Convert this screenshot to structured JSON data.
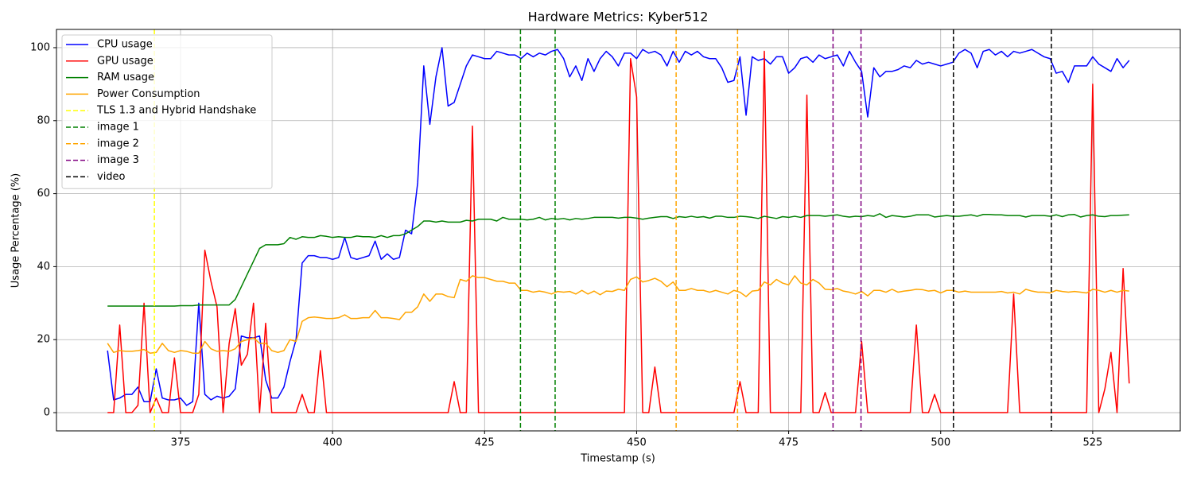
{
  "chart_data": {
    "type": "line",
    "title": "Hardware Metrics: Kyber512",
    "xlabel": "Timestamp (s)",
    "ylabel": "Usage Percentage (%)",
    "x": [
      363,
      364,
      365,
      366,
      367,
      368,
      369,
      370,
      371,
      372,
      373,
      374,
      375,
      376,
      377,
      378,
      379,
      380,
      381,
      382,
      383,
      384,
      385,
      386,
      387,
      388,
      389,
      390,
      391,
      392,
      393,
      394,
      395,
      396,
      397,
      398,
      399,
      400,
      401,
      402,
      403,
      404,
      405,
      406,
      407,
      408,
      409,
      410,
      411,
      412,
      413,
      414,
      415,
      416,
      417,
      418,
      419,
      420,
      421,
      422,
      423,
      424,
      425,
      426,
      427,
      428,
      429,
      430,
      431,
      432,
      433,
      434,
      435,
      436,
      437,
      438,
      439,
      440,
      441,
      442,
      443,
      444,
      445,
      446,
      447,
      448,
      449,
      450,
      451,
      452,
      453,
      454,
      455,
      456,
      457,
      458,
      459,
      460,
      461,
      462,
      463,
      464,
      465,
      466,
      467,
      468,
      469,
      470,
      471,
      472,
      473,
      474,
      475,
      476,
      477,
      478,
      479,
      480,
      481,
      482,
      483,
      484,
      485,
      486,
      487,
      488,
      489,
      490,
      491,
      492,
      493,
      494,
      495,
      496,
      497,
      498,
      499,
      500,
      501,
      502,
      503,
      504,
      505,
      506,
      507,
      508,
      509,
      510,
      511,
      512,
      513,
      514,
      515,
      516,
      517,
      518,
      519,
      520,
      521,
      522,
      523,
      524,
      525,
      526,
      527,
      528,
      529,
      530,
      531
    ],
    "series": [
      {
        "name": "CPU usage",
        "color": "#0000ff",
        "values": [
          17,
          3.5,
          4,
          5,
          5,
          7,
          3,
          3,
          12,
          4,
          3.5,
          3.5,
          4,
          2,
          3,
          30,
          5,
          3.5,
          4.5,
          4,
          4.5,
          6.5,
          21,
          20.5,
          20.5,
          21,
          9,
          4,
          4,
          7,
          14,
          20,
          41,
          43,
          43,
          42.5,
          42.5,
          42,
          42.5,
          48,
          42.5,
          42,
          42.5,
          43,
          47,
          42,
          43.5,
          42,
          42.5,
          50,
          49,
          63,
          95,
          79,
          92,
          100,
          84,
          85,
          90,
          95,
          98,
          97.5,
          97,
          97,
          99,
          98.5,
          98,
          98,
          97,
          98.5,
          97.5,
          98.5,
          98,
          99,
          99.5,
          97,
          92,
          95,
          91,
          97,
          93.5,
          97,
          99,
          97.5,
          95,
          98.5,
          98.5,
          97,
          99.5,
          98.5,
          99,
          98,
          95,
          99,
          96,
          99,
          98,
          99,
          97.5,
          97,
          97,
          94.5,
          90.5,
          91,
          97.5,
          81.5,
          97.5,
          96.5,
          97,
          95.5,
          97.5,
          97.5,
          93,
          94.5,
          97,
          97.5,
          96,
          98,
          97,
          97.5,
          98,
          95,
          99,
          96,
          93.5,
          81,
          94.5,
          92,
          93.5,
          93.5,
          94,
          95,
          94.5,
          96.5,
          95.5,
          96,
          95.5,
          95,
          95.5,
          96,
          98.5,
          99.5,
          98.5,
          94.5,
          99,
          99.5,
          98,
          99,
          97.5,
          99,
          98.5,
          99,
          99.5,
          98.5,
          97.5,
          97,
          93,
          93.5,
          90.5,
          95,
          95,
          95,
          97.5,
          95.5,
          94.5,
          93.5,
          97,
          94.5,
          96.5
        ]
      },
      {
        "name": "GPU usage",
        "color": "#ff0000",
        "values": [
          0,
          0,
          24,
          0,
          0,
          2,
          30,
          0,
          4,
          0,
          0,
          15,
          0,
          0,
          0,
          5,
          44.5,
          36,
          29,
          0,
          19,
          28.5,
          13,
          16,
          30,
          0,
          24.5,
          0,
          0,
          0,
          0,
          0,
          5,
          0,
          0,
          17,
          0,
          0,
          0,
          0,
          0,
          0,
          0,
          0,
          0,
          0,
          0,
          0,
          0,
          0,
          0,
          0,
          0,
          0,
          0,
          0,
          0,
          8.5,
          0,
          0,
          78.5,
          0,
          0,
          0,
          0,
          0,
          0,
          0,
          0,
          0,
          0,
          0,
          0,
          0,
          0,
          0,
          0,
          0,
          0,
          0,
          0,
          0,
          0,
          0,
          0,
          0,
          97,
          86.5,
          0,
          0,
          12.5,
          0,
          0,
          0,
          0,
          0,
          0,
          0,
          0,
          0,
          0,
          0,
          0,
          0,
          8.5,
          0,
          0,
          0,
          99,
          0,
          0,
          0,
          0,
          0,
          0,
          87,
          0,
          0,
          5.5,
          0,
          0,
          0,
          0,
          0,
          19.5,
          0,
          0,
          0,
          0,
          0,
          0,
          0,
          0,
          24,
          0,
          0,
          5,
          0,
          0,
          0,
          0,
          0,
          0,
          0,
          0,
          0,
          0,
          0,
          0,
          32.5,
          0,
          0,
          0,
          0,
          0,
          0,
          0,
          0,
          0,
          0,
          0,
          0,
          90,
          0,
          6.5,
          16.5,
          0,
          39.5,
          8
        ]
      },
      {
        "name": "RAM usage",
        "color": "#008000",
        "values": [
          29.2,
          29.2,
          29.2,
          29.2,
          29.2,
          29.2,
          29.2,
          29.2,
          29.2,
          29.2,
          29.2,
          29.2,
          29.3,
          29.3,
          29.3,
          29.5,
          29.5,
          29.5,
          29.5,
          29.5,
          29.5,
          31,
          34.5,
          38,
          41.5,
          45,
          46,
          46,
          46,
          46.3,
          48,
          47.5,
          48.2,
          48,
          48,
          48.5,
          48.3,
          48,
          48.2,
          48,
          48,
          48.4,
          48.2,
          48.2,
          48,
          48.5,
          48,
          48.5,
          48.5,
          49,
          50,
          51,
          52.5,
          52.5,
          52.2,
          52.5,
          52.2,
          52.2,
          52.2,
          52.7,
          52.5,
          53,
          53,
          53,
          52.5,
          53.5,
          53,
          53,
          53,
          52.8,
          53,
          53.5,
          52.8,
          53.2,
          53,
          53.2,
          52.8,
          53.2,
          53,
          53.2,
          53.5,
          53.5,
          53.5,
          53.5,
          53.3,
          53.5,
          53.5,
          53.3,
          53,
          53.3,
          53.5,
          53.7,
          53.7,
          53.2,
          53.7,
          53.5,
          53.8,
          53.5,
          53.7,
          53.3,
          53.8,
          53.8,
          53.5,
          53.5,
          53.8,
          53.7,
          53.5,
          53.2,
          53.8,
          53.5,
          53.2,
          53.7,
          53.5,
          53.8,
          53.5,
          54,
          54,
          54,
          53.8,
          54,
          54.2,
          53.8,
          53.6,
          53.8,
          53.7,
          54,
          53.8,
          54.5,
          53.5,
          54,
          53.8,
          53.6,
          53.8,
          54.2,
          54.2,
          54.2,
          53.6,
          53.8,
          54,
          53.8,
          53.8,
          54,
          54.2,
          53.8,
          54.3,
          54.3,
          54.2,
          54.2,
          54,
          54,
          54,
          53.6,
          54,
          54,
          54,
          53.8,
          54.2,
          53.7,
          54.2,
          54.3,
          53.6,
          54,
          54.2,
          53.8,
          53.7,
          54,
          54,
          54.1,
          54.2
        ]
      },
      {
        "name": "Power Consumption",
        "color": "#ffa500",
        "values": [
          19,
          16.5,
          17,
          16.8,
          16.8,
          17,
          17.3,
          16.3,
          16.5,
          19,
          17,
          16.5,
          17,
          16.8,
          16.3,
          16.3,
          19.5,
          17.5,
          16.8,
          17,
          16.8,
          17.5,
          19.5,
          20,
          20.5,
          19,
          19,
          17,
          16.5,
          17,
          20,
          19.5,
          25,
          26,
          26.2,
          26,
          25.8,
          25.8,
          26,
          26.8,
          25.8,
          25.8,
          26,
          26,
          28,
          26,
          26,
          25.8,
          25.5,
          27.5,
          27.5,
          29,
          32.5,
          30.5,
          32.5,
          32.5,
          31.8,
          31.5,
          36.5,
          36,
          37.5,
          37,
          37,
          36.5,
          36,
          36,
          35.5,
          35.5,
          33.5,
          33.5,
          33,
          33.3,
          33,
          32.5,
          33.2,
          33,
          33.2,
          32.5,
          33.5,
          32.5,
          33.3,
          32.3,
          33.3,
          33.2,
          33.8,
          33.5,
          36.5,
          37.2,
          35.8,
          36.2,
          36.8,
          36,
          34.5,
          35.8,
          33.5,
          33.5,
          34,
          33.5,
          33.5,
          33,
          33.5,
          33,
          32.5,
          33.5,
          33,
          31.8,
          33.3,
          33.5,
          35.8,
          35,
          36.5,
          35.5,
          35,
          37.5,
          35.5,
          35,
          36.5,
          35.5,
          33.8,
          33.7,
          34,
          33.3,
          33,
          32.5,
          33.2,
          32,
          33.5,
          33.5,
          33,
          33.8,
          33,
          33.3,
          33.5,
          33.8,
          33.7,
          33.3,
          33.5,
          32.8,
          33.5,
          33.5,
          33,
          33.3,
          33,
          33,
          33,
          33,
          33,
          33.2,
          32.8,
          33,
          32.5,
          33.8,
          33.3,
          33,
          33,
          32.8,
          33.5,
          33.2,
          33,
          33.2,
          33,
          32.8,
          33.8,
          33.5,
          33,
          33.5,
          33,
          33.5,
          33.3
        ]
      }
    ],
    "events": [
      {
        "name": "TLS 1.3 and Hybrid Handshake",
        "color": "#ffff00",
        "x": [
          370.7
        ]
      },
      {
        "name": "image 1",
        "color": "#008000",
        "x": [
          430.9,
          436.6
        ]
      },
      {
        "name": "image 2",
        "color": "#ffa500",
        "x": [
          456.5,
          466.6
        ]
      },
      {
        "name": "image 3",
        "color": "#800080",
        "x": [
          482.3,
          486.9
        ]
      },
      {
        "name": "video",
        "color": "#000000",
        "x": [
          502.1,
          518.2
        ]
      }
    ],
    "xlim": [
      354.6,
      539.4
    ],
    "ylim": [
      -5,
      105
    ],
    "xticks": [
      375,
      400,
      425,
      450,
      475,
      500,
      525
    ],
    "yticks": [
      0,
      20,
      40,
      60,
      80,
      100
    ],
    "grid": true,
    "legend": "upper left"
  }
}
